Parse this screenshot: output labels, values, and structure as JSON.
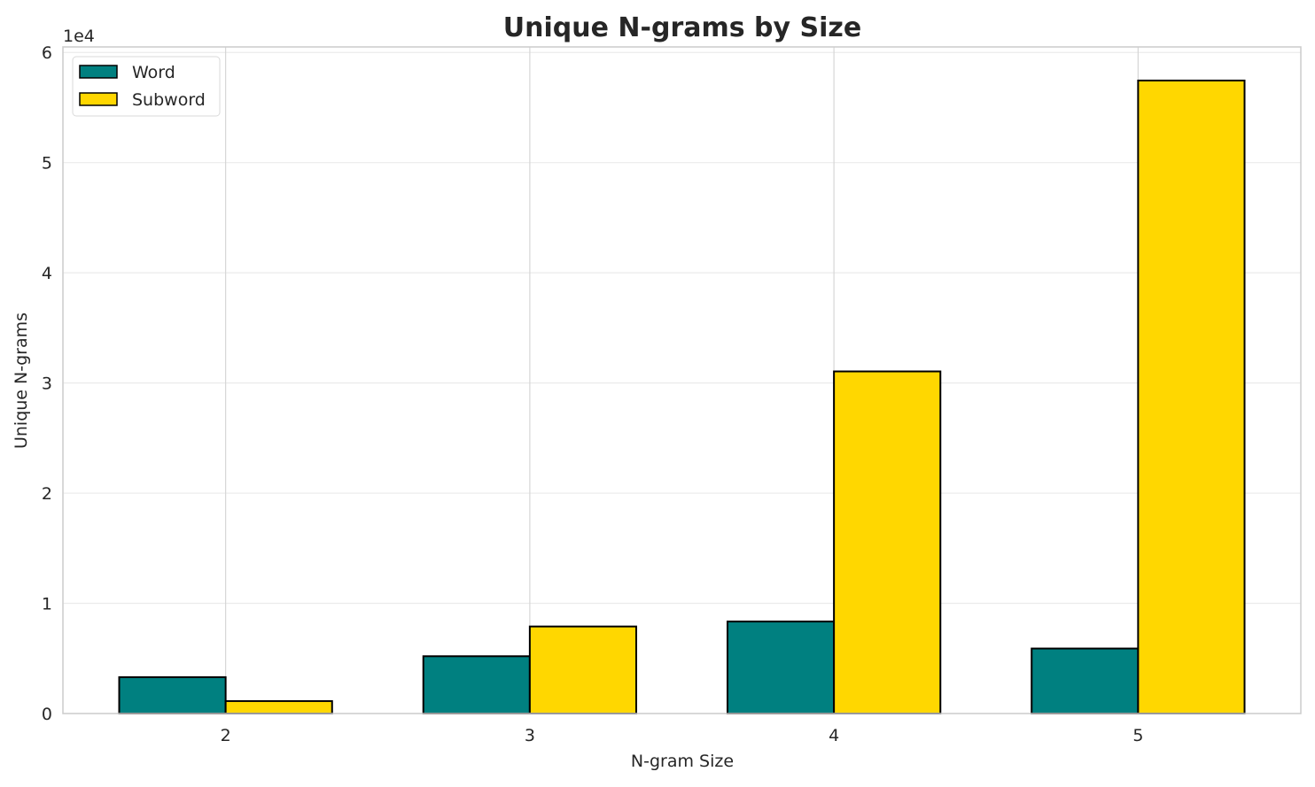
{
  "chart_data": {
    "type": "bar",
    "title": "Unique N-grams by Size",
    "xlabel": "N-gram Size",
    "ylabel": "Unique N-grams",
    "y_offset_label": "1e4",
    "categories": [
      "2",
      "3",
      "4",
      "5"
    ],
    "series": [
      {
        "name": "Word",
        "color": "#008080",
        "values": [
          3300,
          5200,
          8350,
          5900
        ]
      },
      {
        "name": "Subword",
        "color": "#FFD700",
        "values": [
          1130,
          7900,
          31050,
          57450
        ]
      }
    ],
    "ylim": [
      0,
      60500
    ],
    "yticks": [
      0,
      10000,
      20000,
      30000,
      40000,
      50000,
      60000
    ],
    "ytick_labels": [
      "0",
      "1",
      "2",
      "3",
      "4",
      "5",
      "6"
    ],
    "grid": true,
    "legend": "top-left"
  }
}
